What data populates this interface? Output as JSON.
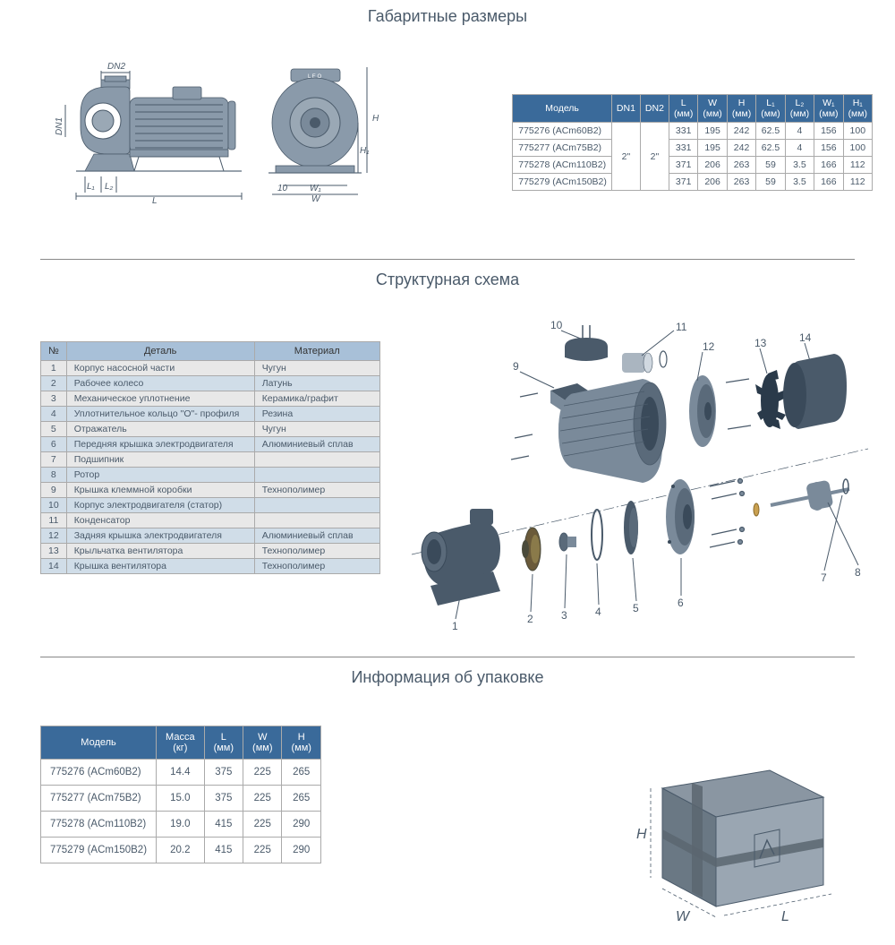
{
  "titles": {
    "dimensions": "Габаритные размеры",
    "structure": "Структурная схема",
    "packaging": "Информация об упаковке"
  },
  "dim_table": {
    "headers": [
      "Модель",
      "DN1",
      "DN2",
      "L (мм)",
      "W (мм)",
      "H (мм)",
      "L₁ (мм)",
      "L₂ (мм)",
      "W₁ (мм)",
      "H₁ (мм)"
    ],
    "dn1": "2\"",
    "dn2": "2\"",
    "rows": [
      {
        "model": "775276 (ACm60B2)",
        "L": "331",
        "W": "195",
        "H": "242",
        "L1": "62.5",
        "L2": "4",
        "W1": "156",
        "H1": "100"
      },
      {
        "model": "775277 (ACm75B2)",
        "L": "331",
        "W": "195",
        "H": "242",
        "L1": "62.5",
        "L2": "4",
        "W1": "156",
        "H1": "100"
      },
      {
        "model": "775278 (ACm110B2)",
        "L": "371",
        "W": "206",
        "H": "263",
        "L1": "59",
        "L2": "3.5",
        "W1": "166",
        "H1": "112"
      },
      {
        "model": "775279 (ACm150B2)",
        "L": "371",
        "W": "206",
        "H": "263",
        "L1": "59",
        "L2": "3.5",
        "W1": "166",
        "H1": "112"
      }
    ]
  },
  "drawing_labels": {
    "DN2": "DN2",
    "DN1": "DN1",
    "L1": "L₁",
    "L2": "L₂",
    "L": "L",
    "H": "H",
    "H1": "H₁",
    "W1": "W₁",
    "W": "W",
    "ten": "10"
  },
  "parts_table": {
    "headers": [
      "№",
      "Деталь",
      "Материал"
    ],
    "rows": [
      {
        "n": "1",
        "part": "Корпус насосной части",
        "mat": "Чугун"
      },
      {
        "n": "2",
        "part": "Рабочее колесо",
        "mat": "Латунь"
      },
      {
        "n": "3",
        "part": "Механическое уплотнение",
        "mat": "Керамика/графит"
      },
      {
        "n": "4",
        "part": "Уплотнительное кольцо \"O\"- профиля",
        "mat": "Резина"
      },
      {
        "n": "5",
        "part": "Отражатель",
        "mat": "Чугун"
      },
      {
        "n": "6",
        "part": "Передняя крышка электродвигателя",
        "mat": "Алюминиевый сплав"
      },
      {
        "n": "7",
        "part": "Подшипник",
        "mat": ""
      },
      {
        "n": "8",
        "part": "Ротор",
        "mat": ""
      },
      {
        "n": "9",
        "part": "Крышка клеммной коробки",
        "mat": "Технополимер"
      },
      {
        "n": "10",
        "part": "Корпус электродвигателя (статор)",
        "mat": ""
      },
      {
        "n": "11",
        "part": "Конденсатор",
        "mat": ""
      },
      {
        "n": "12",
        "part": "Задняя крышка электродвигателя",
        "mat": "Алюминиевый сплав"
      },
      {
        "n": "13",
        "part": "Крыльчатка вентилятора",
        "mat": "Технополимер"
      },
      {
        "n": "14",
        "part": "Крышка вентилятора",
        "mat": "Технополимер"
      }
    ]
  },
  "exploded_labels": [
    "1",
    "2",
    "3",
    "4",
    "5",
    "6",
    "7",
    "8",
    "9",
    "10",
    "11",
    "12",
    "13",
    "14"
  ],
  "pack_table": {
    "headers": [
      "Модель",
      "Масса (кг)",
      "L (мм)",
      "W (мм)",
      "H (мм)"
    ],
    "rows": [
      {
        "model": "775276 (ACm60B2)",
        "mass": "14.4",
        "L": "375",
        "W": "225",
        "H": "265"
      },
      {
        "model": "775277 (ACm75B2)",
        "mass": "15.0",
        "L": "375",
        "W": "225",
        "H": "265"
      },
      {
        "model": "775278 (ACm110B2)",
        "mass": "19.0",
        "L": "415",
        "W": "225",
        "H": "290"
      },
      {
        "model": "775279 (ACm150B2)",
        "mass": "20.2",
        "L": "415",
        "W": "225",
        "H": "290"
      }
    ]
  },
  "box_labels": {
    "H": "H",
    "W": "W",
    "L": "L"
  },
  "colors": {
    "header_bg": "#3a6a9a",
    "parts_header_bg": "#a8c0d8",
    "row_odd": "#e8e8e8",
    "row_even": "#d0dde8",
    "text": "#4a5a6a"
  }
}
